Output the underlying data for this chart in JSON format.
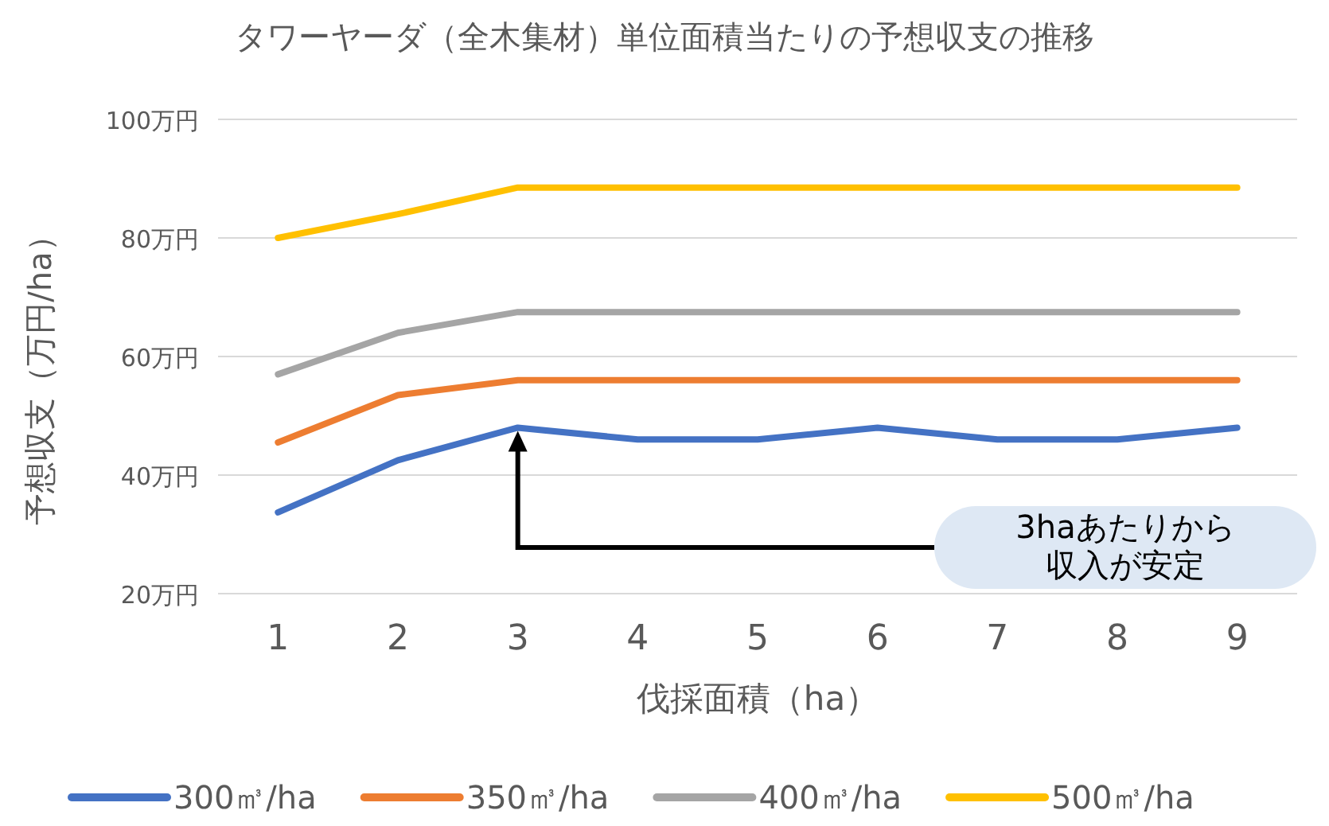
{
  "chart_data": {
    "type": "line",
    "title": "タワーヤーダ（全木集材）単位面積当たりの予想収支の推移",
    "xlabel": "伐採面積（ha）",
    "ylabel": "予想収支（万円/ha）",
    "categories": [
      "1",
      "2",
      "3",
      "4",
      "5",
      "6",
      "7",
      "8",
      "9"
    ],
    "series": [
      {
        "name": "300㎥/ha",
        "color": "#4472c4",
        "values": [
          33.7,
          42.5,
          48,
          46,
          46,
          48,
          46,
          46,
          48
        ]
      },
      {
        "name": "350㎥/ha",
        "color": "#ed7d31",
        "values": [
          45.5,
          53.5,
          56,
          56,
          56,
          56,
          56,
          56,
          56
        ]
      },
      {
        "name": "400㎥/ha",
        "color": "#a5a5a5",
        "values": [
          57,
          64,
          67.5,
          67.5,
          67.5,
          67.5,
          67.5,
          67.5,
          67.5
        ]
      },
      {
        "name": "500㎥/ha",
        "color": "#ffc000",
        "values": [
          80,
          84,
          88.5,
          88.5,
          88.5,
          88.5,
          88.5,
          88.5,
          88.5
        ]
      }
    ],
    "ylim": [
      20,
      100
    ],
    "yticks": [
      {
        "value": 20,
        "label": "20万円"
      },
      {
        "value": 40,
        "label": "40万円"
      },
      {
        "value": 60,
        "label": "60万円"
      },
      {
        "value": 80,
        "label": "80万円"
      },
      {
        "value": 100,
        "label": "100万円"
      }
    ],
    "grid": "y",
    "legend": "bottom",
    "annotations": [
      "3haあたりから収入が安定"
    ]
  }
}
